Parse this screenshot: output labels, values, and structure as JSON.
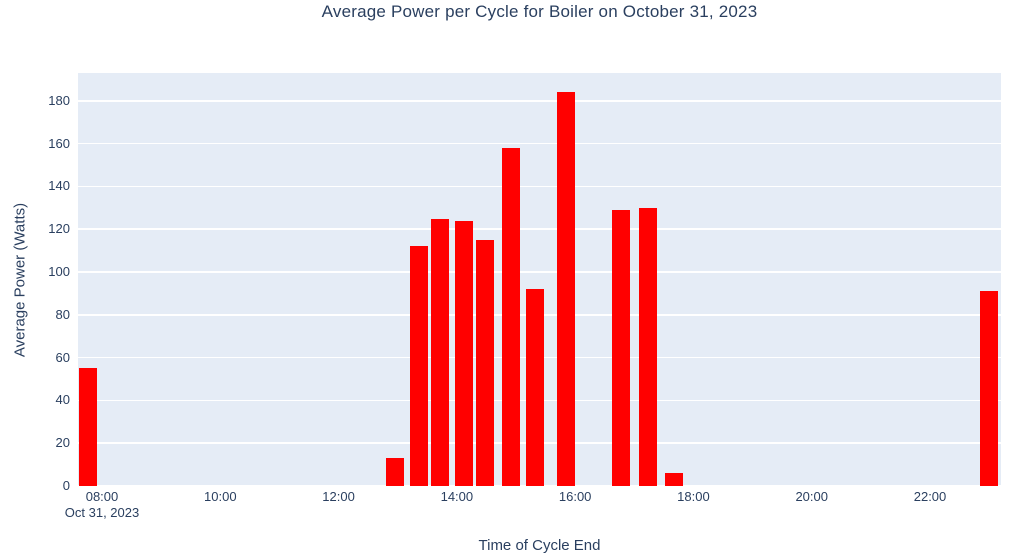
{
  "chart_data": {
    "type": "bar",
    "title": "Average Power per Cycle for Boiler on October 31, 2023",
    "xlabel": "Time of Cycle End",
    "ylabel": "Average Power (Watts)",
    "x_date_label": "Oct 31, 2023",
    "x": [
      "07:46",
      "12:57",
      "13:22",
      "13:43",
      "14:07",
      "14:29",
      "14:55",
      "15:19",
      "15:51",
      "16:46",
      "17:14",
      "17:40",
      "23:00"
    ],
    "values": [
      55,
      13,
      112,
      125,
      124,
      115,
      158,
      92,
      184,
      129,
      130,
      6,
      91
    ],
    "yticks": [
      0,
      20,
      40,
      60,
      80,
      100,
      120,
      140,
      160,
      180
    ],
    "xticks": [
      "08:00",
      "10:00",
      "12:00",
      "14:00",
      "16:00",
      "18:00",
      "20:00",
      "22:00"
    ],
    "ylim": [
      0,
      193
    ],
    "x_range_hours": [
      7.594,
      23.2
    ],
    "grid": "horizontal-only",
    "legend": "none",
    "colors": {
      "bar": "#ff0000",
      "plot_background": "#e5ecf6",
      "gridline": "#ffffff",
      "text": "#2a3f5f",
      "paper_background": "#ffffff"
    }
  }
}
